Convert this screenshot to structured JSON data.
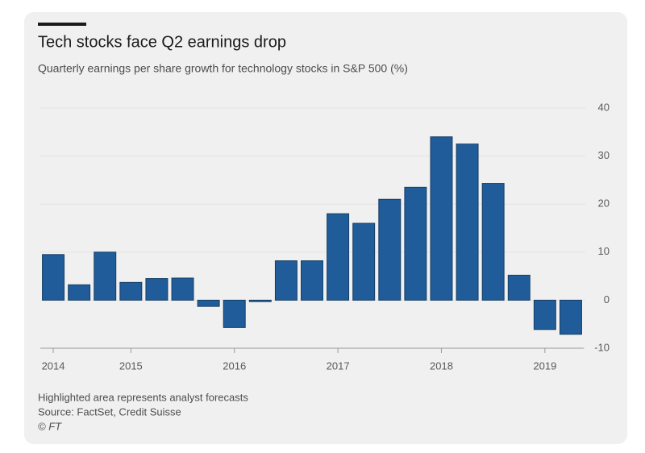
{
  "chart_data": {
    "type": "bar",
    "title": "Tech stocks face Q2 earnings drop",
    "subtitle": "Quarterly earnings per share growth for technology stocks in S&P 500 (%)",
    "categories": [
      "2014",
      null,
      null,
      "2015",
      null,
      null,
      null,
      "2016",
      null,
      null,
      null,
      "2017",
      null,
      null,
      null,
      "2018",
      null,
      null,
      null,
      "2019",
      null
    ],
    "values": [
      9.5,
      3.2,
      10,
      3.7,
      4.5,
      4.6,
      -1.3,
      -5.7,
      -0.3,
      8.2,
      8.2,
      18,
      16,
      21,
      23.5,
      34,
      32.5,
      24.3,
      5.2,
      -6.1,
      -7.1
    ],
    "color": "#1f5c99",
    "ylim": [
      -10,
      40
    ],
    "yticks": [
      -10,
      0,
      10,
      20,
      30,
      40
    ],
    "grid": true,
    "notes": [
      "Highlighted area represents analyst forecasts",
      "Source: FactSet, Credit Suisse",
      "© FT"
    ]
  }
}
